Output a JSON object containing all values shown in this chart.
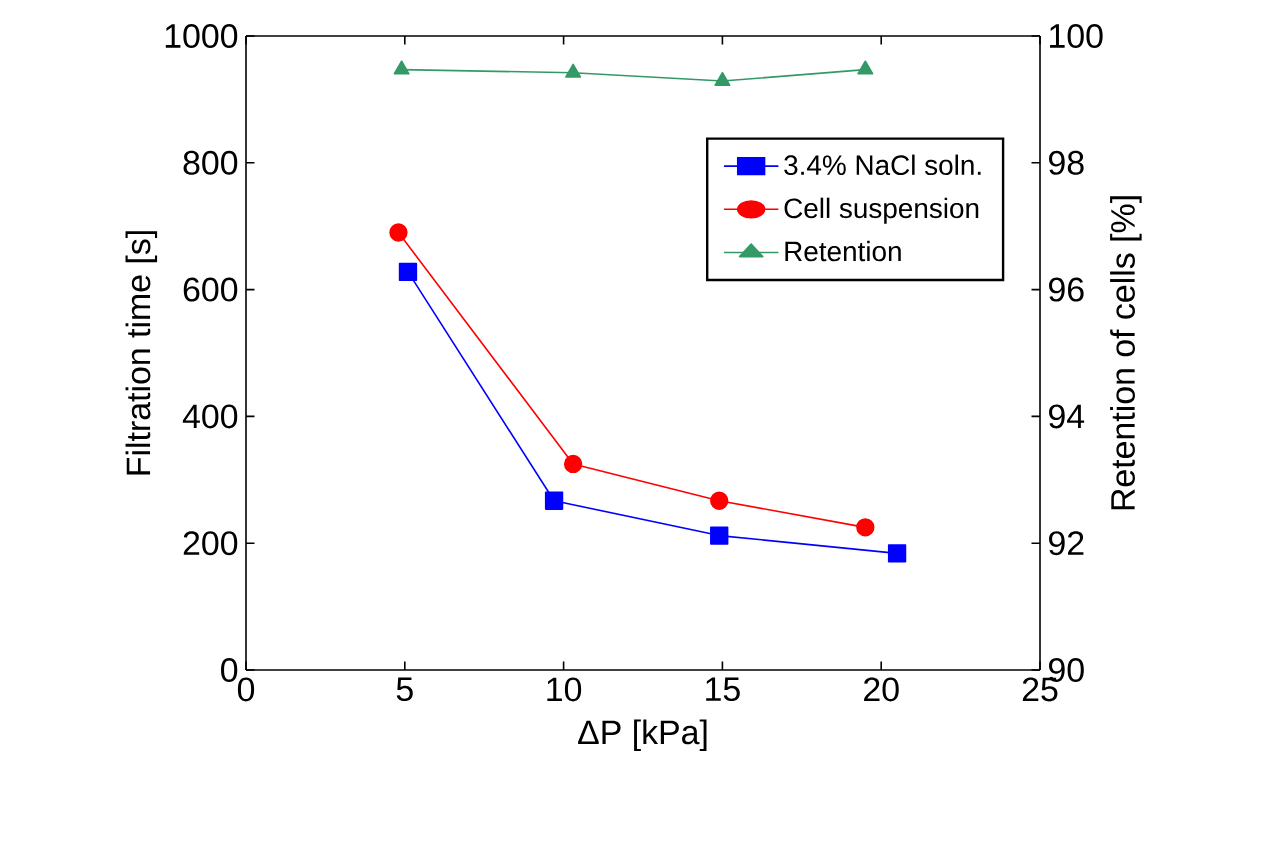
{
  "chart_data": {
    "type": "line",
    "xlabel": "ΔP [kPa]",
    "ylabel": "Filtration time [s]",
    "y2label": "Retention of cells [%]",
    "xlim": [
      0,
      25
    ],
    "xticks": [
      0,
      5,
      10,
      15,
      20,
      25
    ],
    "ylim": [
      0,
      1000
    ],
    "yticks": [
      0,
      200,
      400,
      600,
      800,
      1000
    ],
    "y2lim": [
      90,
      100
    ],
    "y2ticks": [
      90,
      92,
      94,
      96,
      98,
      100
    ],
    "grid": false,
    "legend": "top right",
    "series": [
      {
        "name": "3.4% NaCl soln.",
        "color": "#0000ff",
        "marker": "square",
        "x": [
          5.1,
          9.7,
          14.9,
          20.5
        ],
        "values": [
          628,
          267,
          212,
          184
        ]
      },
      {
        "name": "Cell suspension",
        "color": "#ff0000",
        "marker": "circle",
        "x": [
          4.8,
          10.3,
          14.9,
          19.5
        ],
        "values": [
          690,
          325,
          267,
          225
        ]
      },
      {
        "name": "Retention",
        "color": "#339966",
        "marker": "triangle",
        "axis": "y2",
        "x": [
          4.9,
          10.3,
          15.0,
          19.5
        ],
        "values": [
          99.47,
          99.42,
          99.29,
          99.47
        ]
      }
    ]
  }
}
